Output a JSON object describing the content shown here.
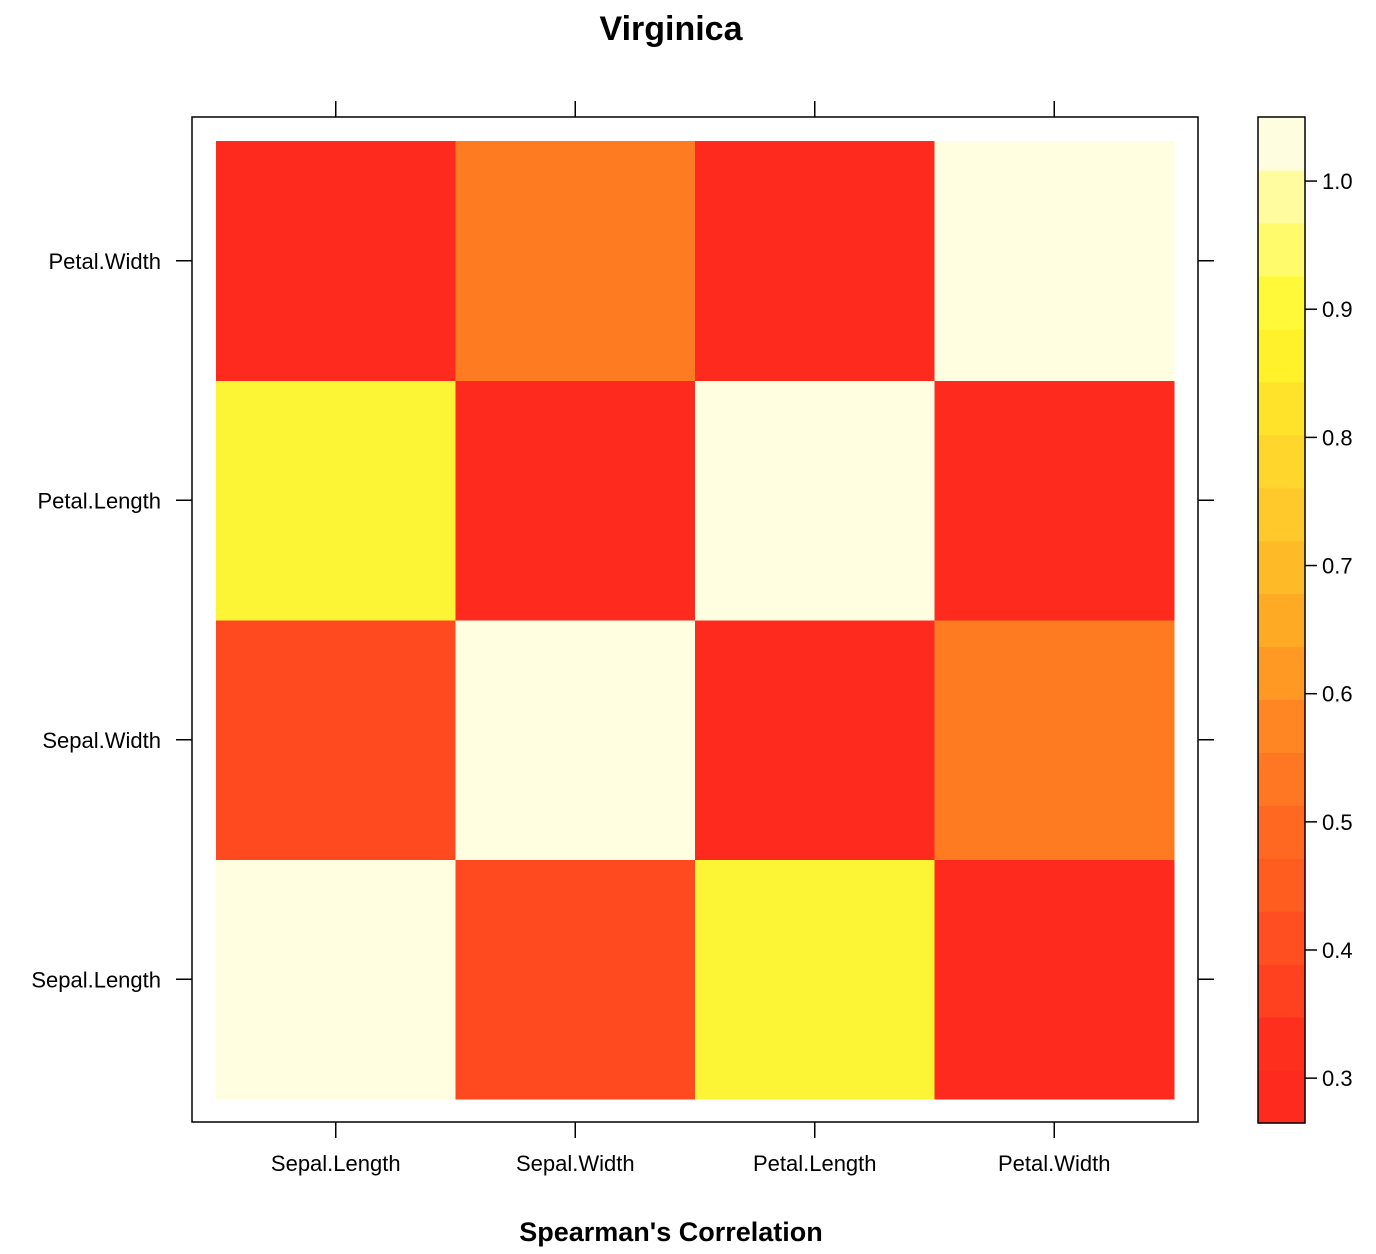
{
  "chart_data": {
    "type": "heatmap",
    "title": "Virginica",
    "xlabel": "Spearman's Correlation",
    "ylabel": "",
    "x_categories": [
      "Sepal.Length",
      "Sepal.Width",
      "Petal.Length",
      "Petal.Width"
    ],
    "y_categories": [
      "Sepal.Length",
      "Sepal.Width",
      "Petal.Length",
      "Petal.Width"
    ],
    "values": [
      [
        1.0,
        0.42,
        0.88,
        0.32
      ],
      [
        0.42,
        1.0,
        0.32,
        0.53
      ],
      [
        0.88,
        0.32,
        1.0,
        0.32
      ],
      [
        0.32,
        0.53,
        0.32,
        1.0
      ]
    ],
    "colorkey": {
      "range": [
        0.265,
        1.05
      ],
      "ticks": [
        "0.3",
        "0.4",
        "0.5",
        "0.6",
        "0.7",
        "0.8",
        "0.9",
        "1.0"
      ],
      "colors": [
        "#FF2A1E",
        "#FF2F1E",
        "#FF411F",
        "#FF4F20",
        "#FF5C20",
        "#FF6821",
        "#FF7722",
        "#FF8622",
        "#FF9923",
        "#FFAA25",
        "#FFBA28",
        "#FFC92B",
        "#FFD62C",
        "#FFE32B",
        "#FFF12A",
        "#FFF93A",
        "#FFFB6A",
        "#FFFCA0",
        "#FFFDE0"
      ],
      "cell_low_color": "#FF2A1E",
      "cell_mid_color": "#FF4A20",
      "cell_midhigh_color": "#FF7B22",
      "cell_high_color": "#FCF536",
      "cell_diag_color": "#FFFEE0"
    }
  }
}
